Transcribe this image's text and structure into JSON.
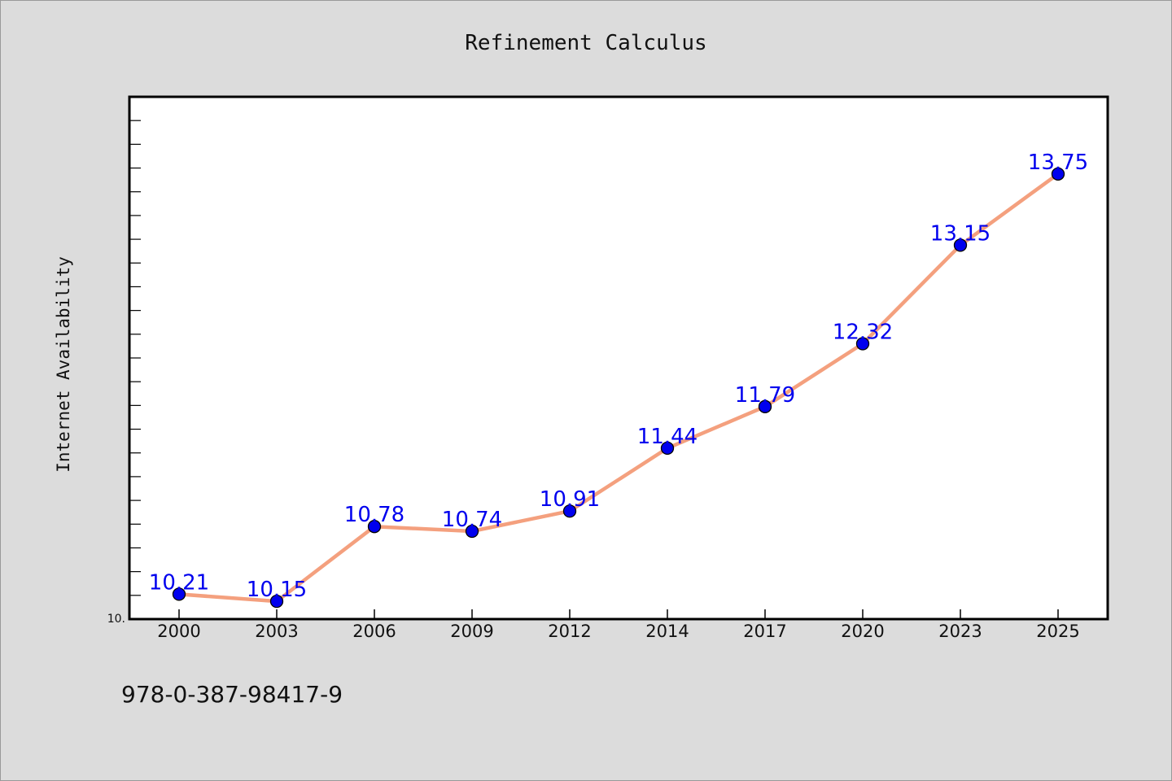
{
  "chart_data": {
    "type": "line",
    "title": "Refinement Calculus",
    "xlabel": "",
    "ylabel": "Internet Availability",
    "categories": [
      "2000",
      "2003",
      "2006",
      "2009",
      "2012",
      "2014",
      "2017",
      "2020",
      "2023",
      "2025"
    ],
    "series": [
      {
        "values": [
          10.21,
          10.15,
          10.78,
          10.74,
          10.91,
          11.44,
          11.79,
          12.32,
          13.15,
          13.75
        ],
        "data_labels": [
          "10.21",
          "10.15",
          "10.78",
          "10.74",
          "10.91",
          "11.44",
          "11.79",
          "12.32",
          "13.15",
          "13.75"
        ],
        "line_color": "#f4a07e",
        "marker_color": "#0000ee"
      }
    ],
    "ylim": [
      10.0,
      14.4
    ],
    "y_tick_labels": [
      "10."
    ],
    "grid": false,
    "legend": "none"
  },
  "footnote": "978-0-387-98417-9",
  "colors": {
    "background": "#dcdcdc",
    "plot_background": "#ffffff",
    "line": "#f4a07e",
    "marker": "#0000ee",
    "label": "#0000ee"
  }
}
